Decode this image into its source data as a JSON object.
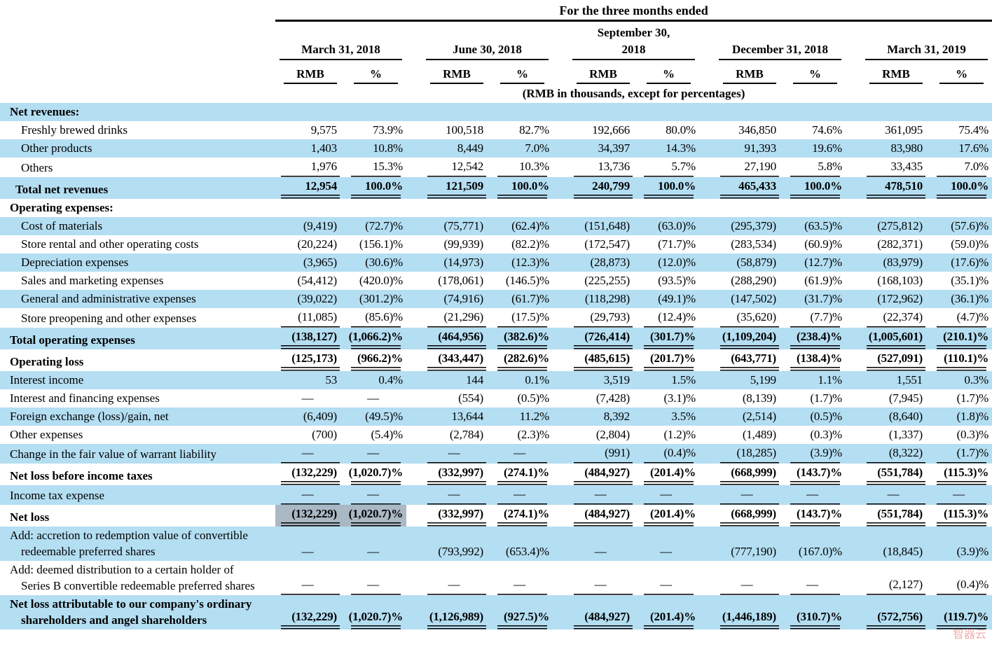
{
  "table": {
    "title": "For the three months ended",
    "subtitle": "(RMB in thousands, except for percentages)",
    "col_rmb": "RMB",
    "col_pct": "%",
    "periods": [
      "March 31, 2018",
      "June 30, 2018",
      "September 30,\n2018",
      "December 31, 2018",
      "March 31, 2019"
    ],
    "rows": [
      {
        "label": "Net revenues:",
        "bold": true,
        "indent": 0,
        "underline": "",
        "values": []
      },
      {
        "label": "Freshly brewed drinks",
        "bold": false,
        "indent": 1,
        "underline": "",
        "values": [
          "9,575",
          "73.9%",
          "100,518",
          "82.7%",
          "192,666",
          "80.0%",
          "346,850",
          "74.6%",
          "361,095",
          "75.4%"
        ]
      },
      {
        "label": "Other products",
        "bold": false,
        "indent": 1,
        "underline": "",
        "values": [
          "1,403",
          "10.8%",
          "8,449",
          "7.0%",
          "34,397",
          "14.3%",
          "91,393",
          "19.6%",
          "83,980",
          "17.6%"
        ]
      },
      {
        "label": "Others",
        "bold": false,
        "indent": 1,
        "underline": "s",
        "values": [
          "1,976",
          "15.3%",
          "12,542",
          "10.3%",
          "13,736",
          "5.7%",
          "27,190",
          "5.8%",
          "33,435",
          "7.0%"
        ]
      },
      {
        "label": "Total net revenues",
        "bold": true,
        "indent": 2,
        "underline": "d",
        "values": [
          "12,954",
          "100.0%",
          "121,509",
          "100.0%",
          "240,799",
          "100.0%",
          "465,433",
          "100.0%",
          "478,510",
          "100.0%"
        ]
      },
      {
        "label": "Operating expenses:",
        "bold": true,
        "indent": 0,
        "underline": "",
        "values": []
      },
      {
        "label": "Cost of materials",
        "bold": false,
        "indent": 1,
        "underline": "",
        "values": [
          "(9,419)",
          "(72.7)%",
          "(75,771)",
          "(62.4)%",
          "(151,648)",
          "(63.0)%",
          "(295,379)",
          "(63.5)%",
          "(275,812)",
          "(57.6)%"
        ]
      },
      {
        "label": "Store rental and other operating costs",
        "bold": false,
        "indent": 1,
        "underline": "",
        "values": [
          "(20,224)",
          "(156.1)%",
          "(99,939)",
          "(82.2)%",
          "(172,547)",
          "(71.7)%",
          "(283,534)",
          "(60.9)%",
          "(282,371)",
          "(59.0)%"
        ]
      },
      {
        "label": "Depreciation expenses",
        "bold": false,
        "indent": 1,
        "underline": "",
        "values": [
          "(3,965)",
          "(30.6)%",
          "(14,973)",
          "(12.3)%",
          "(28,873)",
          "(12.0)%",
          "(58,879)",
          "(12.7)%",
          "(83,979)",
          "(17.6)%"
        ]
      },
      {
        "label": "Sales and marketing expenses",
        "bold": false,
        "indent": 1,
        "underline": "",
        "values": [
          "(54,412)",
          "(420.0)%",
          "(178,061)",
          "(146.5)%",
          "(225,255)",
          "(93.5)%",
          "(288,290)",
          "(61.9)%",
          "(168,103)",
          "(35.1)%"
        ]
      },
      {
        "label": "General and administrative expenses",
        "bold": false,
        "indent": 1,
        "underline": "",
        "values": [
          "(39,022)",
          "(301.2)%",
          "(74,916)",
          "(61.7)%",
          "(118,298)",
          "(49.1)%",
          "(147,502)",
          "(31.7)%",
          "(172,962)",
          "(36.1)%"
        ]
      },
      {
        "label": "Store preopening and other expenses",
        "bold": false,
        "indent": 1,
        "underline": "s",
        "values": [
          "(11,085)",
          "(85.6)%",
          "(21,296)",
          "(17.5)%",
          "(29,793)",
          "(12.4)%",
          "(35,620)",
          "(7.7)%",
          "(22,374)",
          "(4.7)%"
        ]
      },
      {
        "label": "Total operating expenses",
        "bold": true,
        "indent": 0,
        "underline": "d",
        "values": [
          "(138,127)",
          "(1,066.2)%",
          "(464,956)",
          "(382.6)%",
          "(726,414)",
          "(301.7)%",
          "(1,109,204)",
          "(238.4)%",
          "(1,005,601)",
          "(210.1)%"
        ]
      },
      {
        "label": "Operating loss",
        "bold": true,
        "indent": 0,
        "underline": "d",
        "values": [
          "(125,173)",
          "(966.2)%",
          "(343,447)",
          "(282.6)%",
          "(485,615)",
          "(201.7)%",
          "(643,771)",
          "(138.4)%",
          "(527,091)",
          "(110.1)%"
        ]
      },
      {
        "label": "Interest income",
        "bold": false,
        "indent": 0,
        "underline": "",
        "values": [
          "53",
          "0.4%",
          "144",
          "0.1%",
          "3,519",
          "1.5%",
          "5,199",
          "1.1%",
          "1,551",
          "0.3%"
        ]
      },
      {
        "label": "Interest and financing expenses",
        "bold": false,
        "indent": 0,
        "underline": "",
        "values": [
          "—",
          "—",
          "(554)",
          "(0.5)%",
          "(7,428)",
          "(3.1)%",
          "(8,139)",
          "(1.7)%",
          "(7,945)",
          "(1.7)%"
        ]
      },
      {
        "label": "Foreign exchange (loss)/gain, net",
        "bold": false,
        "indent": 0,
        "underline": "",
        "values": [
          "(6,409)",
          "(49.5)%",
          "13,644",
          "11.2%",
          "8,392",
          "3.5%",
          "(2,514)",
          "(0.5)%",
          "(8,640)",
          "(1.8)%"
        ]
      },
      {
        "label": "Other expenses",
        "bold": false,
        "indent": 0,
        "underline": "",
        "values": [
          "(700)",
          "(5.4)%",
          "(2,784)",
          "(2.3)%",
          "(2,804)",
          "(1.2)%",
          "(1,489)",
          "(0.3)%",
          "(1,337)",
          "(0.3)%"
        ]
      },
      {
        "label": "Change in the fair value of warrant liability",
        "bold": false,
        "indent": 0,
        "underline": "s",
        "values": [
          "—",
          "—",
          "—",
          "—",
          "(991)",
          "(0.4)%",
          "(18,285)",
          "(3.9)%",
          "(8,322)",
          "(1.7)%"
        ]
      },
      {
        "label": "Net loss before income taxes",
        "bold": true,
        "indent": 0,
        "underline": "d",
        "values": [
          "(132,229)",
          "(1,020.7)%",
          "(332,997)",
          "(274.1)%",
          "(484,927)",
          "(201.4)%",
          "(668,999)",
          "(143.7)%",
          "(551,784)",
          "(115.3)%"
        ]
      },
      {
        "label": "Income tax expense",
        "bold": false,
        "indent": 0,
        "underline": "s",
        "values": [
          "—",
          "—",
          "—",
          "—",
          "—",
          "—",
          "—",
          "—",
          "—",
          "—"
        ]
      },
      {
        "label": "Net loss",
        "bold": true,
        "indent": 0,
        "underline": "d",
        "highlight": [
          0,
          1
        ],
        "values": [
          "(132,229)",
          "(1,020.7)%",
          "(332,997)",
          "(274.1)%",
          "(484,927)",
          "(201.4)%",
          "(668,999)",
          "(143.7)%",
          "(551,784)",
          "(115.3)%"
        ]
      },
      {
        "label": "Add: accretion to redemption value of convertible redeemable preferred shares",
        "bold": false,
        "indent": 0,
        "underline": "",
        "values": [
          "—",
          "—",
          "(793,992)",
          "(653.4)%",
          "—",
          "—",
          "(777,190)",
          "(167.0)%",
          "(18,845)",
          "(3.9)%"
        ]
      },
      {
        "label": "Add: deemed distribution to a certain holder of Series B convertible redeemable preferred shares",
        "bold": false,
        "indent": 0,
        "underline": "s",
        "values": [
          "—",
          "—",
          "—",
          "—",
          "—",
          "—",
          "—",
          "—",
          "(2,127)",
          "(0.4)%"
        ]
      },
      {
        "label": "Net loss attributable to our company's ordinary shareholders and angel shareholders",
        "bold": true,
        "indent": 0,
        "underline": "d",
        "values": [
          "(132,229)",
          "(1,020.7)%",
          "(1,126,989)",
          "(927.5)%",
          "(484,927)",
          "(201.4)%",
          "(1,446,189)",
          "(310.7)%",
          "(572,756)",
          "(119.7)%"
        ]
      }
    ]
  },
  "watermark": {
    "text": "智器云"
  }
}
